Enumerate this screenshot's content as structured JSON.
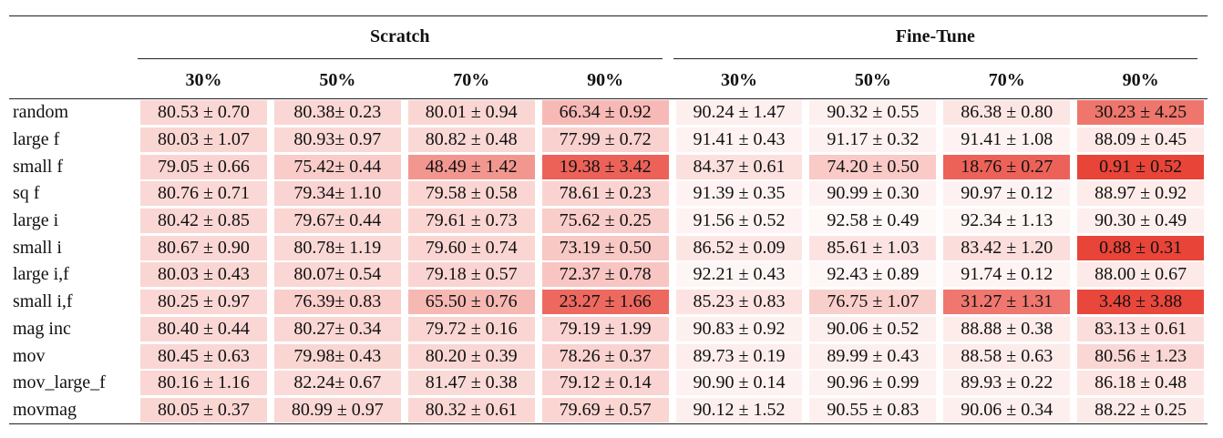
{
  "table": {
    "groups": [
      "Scratch",
      "Fine-Tune"
    ],
    "columns": [
      "30%",
      "50%",
      "70%",
      "90%",
      "30%",
      "50%",
      "70%",
      "90%"
    ],
    "rows": [
      {
        "label": "random",
        "cells": [
          "80.53 ± 0.70",
          "80.38± 0.23",
          "80.01 ± 0.94",
          "66.34 ± 0.92",
          "90.24 ± 1.47",
          "90.32 ± 0.55",
          "86.38 ± 0.80",
          "30.23 ± 4.25"
        ]
      },
      {
        "label": "large f",
        "cells": [
          "80.03 ± 1.07",
          "80.93± 0.97",
          "80.82 ± 0.48",
          "77.99 ± 0.72",
          "91.41 ± 0.43",
          "91.17 ± 0.32",
          "91.41 ± 1.08",
          "88.09 ± 0.45"
        ]
      },
      {
        "label": "small f",
        "cells": [
          "79.05 ± 0.66",
          "75.42± 0.44",
          "48.49 ± 1.42",
          "19.38 ± 3.42",
          "84.37 ± 0.61",
          "74.20 ± 0.50",
          "18.76 ± 0.27",
          "0.91 ± 0.52"
        ]
      },
      {
        "label": "sq f",
        "cells": [
          "80.76 ± 0.71",
          "79.34± 1.10",
          "79.58 ± 0.58",
          "78.61 ± 0.23",
          "91.39 ± 0.35",
          "90.99 ± 0.30",
          "90.97 ± 0.12",
          "88.97 ± 0.92"
        ]
      },
      {
        "label": "large i",
        "cells": [
          "80.42 ± 0.85",
          "79.67± 0.44",
          "79.61 ± 0.73",
          "75.62 ± 0.25",
          "91.56 ± 0.52",
          "92.58 ± 0.49",
          "92.34 ± 1.13",
          "90.30 ± 0.49"
        ]
      },
      {
        "label": "small i",
        "cells": [
          "80.67 ± 0.90",
          "80.78± 1.19",
          "79.60 ± 0.74",
          "73.19 ± 0.50",
          "86.52 ± 0.09",
          "85.61 ± 1.03",
          "83.42 ± 1.20",
          "0.88 ± 0.31"
        ]
      },
      {
        "label": "large i,f",
        "cells": [
          "80.03 ± 0.43",
          "80.07± 0.54",
          "79.18 ± 0.57",
          "72.37 ± 0.78",
          "92.21 ± 0.43",
          "92.43 ± 0.89",
          "91.74 ± 0.12",
          "88.00 ± 0.67"
        ]
      },
      {
        "label": "small i,f",
        "cells": [
          "80.25 ± 0.97",
          "76.39± 0.83",
          "65.50 ± 0.76",
          "23.27 ± 1.66",
          "85.23 ± 0.83",
          "76.75 ± 1.07",
          "31.27 ± 1.31",
          "3.48 ± 3.88"
        ]
      },
      {
        "label": "mag inc",
        "cells": [
          "80.40 ± 0.44",
          "80.27± 0.34",
          "79.72 ± 0.16",
          "79.19 ± 1.99",
          "90.83 ± 0.92",
          "90.06 ± 0.52",
          "88.88 ± 0.38",
          "83.13 ± 0.61"
        ]
      },
      {
        "label": "mov",
        "cells": [
          "80.45 ± 0.63",
          "79.98± 0.43",
          "80.20 ± 0.39",
          "78.26 ± 0.37",
          "89.73 ± 0.19",
          "89.99 ± 0.43",
          "88.58 ± 0.63",
          "80.56 ± 1.23"
        ]
      },
      {
        "label": "mov_large_f",
        "cells": [
          "80.16 ± 1.16",
          "82.24± 0.67",
          "81.47 ± 0.38",
          "79.12 ± 0.14",
          "90.90 ± 0.14",
          "90.96 ± 0.99",
          "89.93 ± 0.22",
          "86.18 ± 0.48"
        ]
      },
      {
        "label": "movmag",
        "cells": [
          "80.05 ± 0.37",
          "80.99 ± 0.97",
          "80.32 ± 0.61",
          "79.69 ± 0.57",
          "90.12 ± 1.52",
          "90.55 ± 0.83",
          "90.06 ± 0.34",
          "88.22 ± 0.25"
        ]
      }
    ]
  }
}
